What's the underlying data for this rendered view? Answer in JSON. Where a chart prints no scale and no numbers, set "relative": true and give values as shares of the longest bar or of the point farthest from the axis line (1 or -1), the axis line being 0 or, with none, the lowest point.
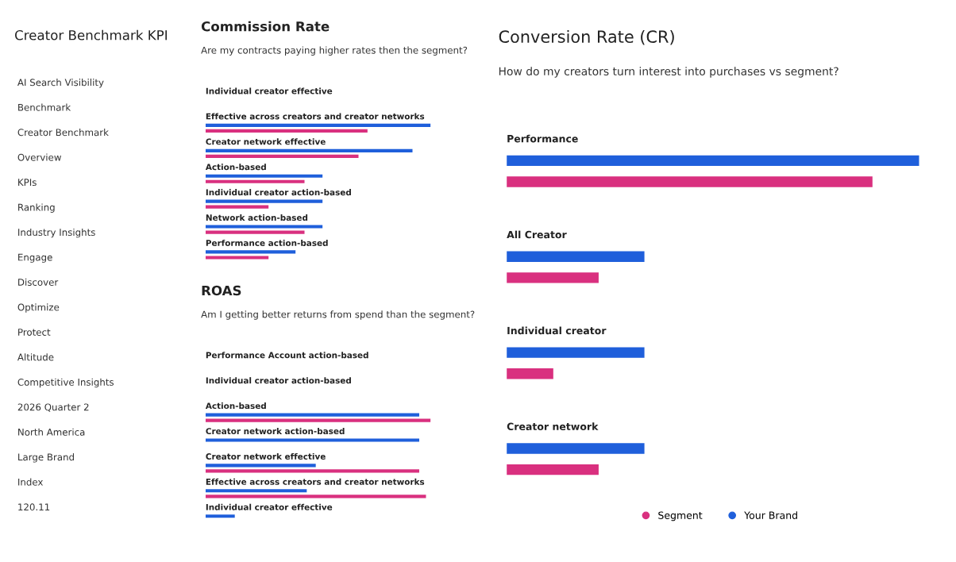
{
  "chart_data": [
    {
      "type": "other",
      "title": "Creator Benchmark KPI",
      "annotations": [
        "AI Search Visibility",
        "Benchmark",
        "Creator Benchmark",
        "Overview",
        "KPIs",
        "Ranking",
        "Industry Insights",
        "Engage",
        "Discover",
        "Optimize",
        "Protect",
        "Altitude",
        "Competitive Insights",
        "2026 Quarter 2",
        "North America",
        "Large Brand",
        "Index",
        "120.11"
      ]
    },
    {
      "type": "bar",
      "orientation": "horizontal",
      "relative": true,
      "title": "Commission Rate",
      "subtitle": "Are my contracts paying higher rates then the segment?",
      "categories": [
        "Individual creator effective",
        "Effective across creators and creator networks",
        "Creator network effective",
        "Action-based",
        "Individual creator action-based",
        "Network action-based",
        "Performance action-based"
      ],
      "series": [
        {
          "color": "#1f5fdb",
          "values": [
            null,
            1,
            0.92,
            0.52,
            0.52,
            0.52,
            0.4
          ]
        },
        {
          "color": "#d9307f",
          "values": [
            null,
            0.72,
            0.68,
            0.44,
            0.28,
            0.44,
            0.28
          ]
        }
      ]
    },
    {
      "type": "bar",
      "orientation": "horizontal",
      "relative": true,
      "title": "ROAS",
      "subtitle": "Am I getting better returns from spend than the segment?",
      "categories": [
        "Performance Account action-based",
        "Individual creator action-based",
        "Action-based",
        "Creator network action-based",
        "Creator network effective",
        "Effective across creators and creator networks",
        "Individual creator effective"
      ],
      "series": [
        {
          "color": "#1f5fdb",
          "values": [
            null,
            null,
            0.95,
            0.95,
            0.49,
            0.45,
            0.13
          ]
        },
        {
          "color": "#d9307f",
          "values": [
            null,
            null,
            1,
            null,
            0.95,
            0.98,
            null
          ]
        }
      ]
    },
    {
      "type": "bar",
      "orientation": "horizontal",
      "relative": true,
      "title": "Conversion Rate (CR)",
      "subtitle": "How do my creators turn interest into purchases vs segment?",
      "legend": "bottom",
      "categories": [
        "Performance",
        "All Creator",
        "Individual creator",
        "Creator network"
      ],
      "series": [
        {
          "name": "Your Brand",
          "color": "#1f5fdb",
          "values": [
            1,
            0.334,
            0.334,
            0.334
          ]
        },
        {
          "name": "Segment",
          "color": "#d9307f",
          "values": [
            0.887,
            0.223,
            0.113,
            0.223
          ]
        }
      ]
    }
  ]
}
